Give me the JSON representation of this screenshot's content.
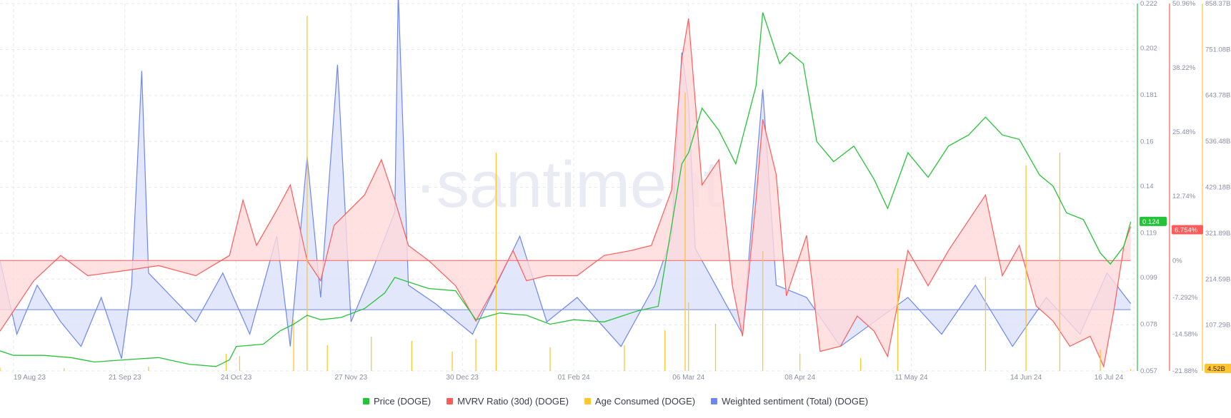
{
  "watermark": "·santiment",
  "colors": {
    "price": "#26c33a",
    "mvrv": "#ff5b5b",
    "age": "#ffc533",
    "sentiment": "#6e86f0",
    "mvrv_fill": "#ffd9d9",
    "sent_fill": "#dde3fb",
    "grid": "#e6e8ee",
    "tick": "#8a8fa3"
  },
  "legend": {
    "price": "Price (DOGE)",
    "mvrv": "MVRV Ratio (30d) (DOGE)",
    "age": "Age Consumed (DOGE)",
    "sentiment": "Weighted sentiment (Total) (DOGE)"
  },
  "chart_data": {
    "type": "line",
    "x_start": "2023-08-15",
    "x_end": "2024-07-17",
    "x_ticks": [
      "19 Aug 23",
      "21 Sep 23",
      "24 Oct 23",
      "27 Nov 23",
      "30 Dec 23",
      "01 Feb 24",
      "06 Mar 24",
      "08 Apr 24",
      "11 May 24",
      "14 Jun 24",
      "16 Jul 24"
    ],
    "axes": {
      "price": {
        "ticks": [
          "0.222",
          "0.202",
          "0.181",
          "0.16",
          "0.14",
          "0.119",
          "0.099",
          "0.078",
          "0.057"
        ],
        "range": [
          0.057,
          0.222
        ],
        "current": "0.124"
      },
      "mvrv": {
        "ticks": [
          "50.96%",
          "38.22%",
          "25.48%",
          "12.74%",
          "0%",
          "-7.292%",
          "-14.58%",
          "-21.88%"
        ],
        "range": [
          -21.88,
          50.96
        ],
        "current": "6.754%"
      },
      "age": {
        "ticks": [
          "858.37B",
          "751.08B",
          "643.78B",
          "536.48B",
          "429.18B",
          "321.89B",
          "214.59B",
          "107.29B"
        ],
        "range": [
          0,
          858.37
        ],
        "unit": "B",
        "current": "4.52B"
      },
      "sentiment": {
        "range": [
          -0.5,
          2.5
        ],
        "baseline": 0
      }
    },
    "series": [
      {
        "name": "Price (DOGE)",
        "axis": "price",
        "points": [
          [
            "2023-08-15",
            0.066
          ],
          [
            "2023-08-19",
            0.064
          ],
          [
            "2023-08-28",
            0.064
          ],
          [
            "2023-09-05",
            0.063
          ],
          [
            "2023-09-12",
            0.061
          ],
          [
            "2023-09-21",
            0.062
          ],
          [
            "2023-10-01",
            0.063
          ],
          [
            "2023-10-10",
            0.06
          ],
          [
            "2023-10-18",
            0.059
          ],
          [
            "2023-10-22",
            0.062
          ],
          [
            "2023-10-24",
            0.068
          ],
          [
            "2023-11-01",
            0.069
          ],
          [
            "2023-11-06",
            0.075
          ],
          [
            "2023-11-10",
            0.078
          ],
          [
            "2023-11-14",
            0.082
          ],
          [
            "2023-11-18",
            0.08
          ],
          [
            "2023-11-24",
            0.081
          ],
          [
            "2023-12-01",
            0.085
          ],
          [
            "2023-12-07",
            0.092
          ],
          [
            "2023-12-10",
            0.099
          ],
          [
            "2023-12-14",
            0.097
          ],
          [
            "2023-12-20",
            0.094
          ],
          [
            "2023-12-28",
            0.093
          ],
          [
            "2024-01-03",
            0.08
          ],
          [
            "2024-01-10",
            0.083
          ],
          [
            "2024-01-18",
            0.082
          ],
          [
            "2024-01-25",
            0.078
          ],
          [
            "2024-02-01",
            0.08
          ],
          [
            "2024-02-10",
            0.079
          ],
          [
            "2024-02-20",
            0.084
          ],
          [
            "2024-02-26",
            0.086
          ],
          [
            "2024-02-29",
            0.113
          ],
          [
            "2024-03-04",
            0.15
          ],
          [
            "2024-03-06",
            0.155
          ],
          [
            "2024-03-10",
            0.175
          ],
          [
            "2024-03-15",
            0.165
          ],
          [
            "2024-03-20",
            0.15
          ],
          [
            "2024-03-26",
            0.185
          ],
          [
            "2024-03-28",
            0.218
          ],
          [
            "2024-04-02",
            0.195
          ],
          [
            "2024-04-05",
            0.2
          ],
          [
            "2024-04-09",
            0.195
          ],
          [
            "2024-04-13",
            0.16
          ],
          [
            "2024-04-18",
            0.151
          ],
          [
            "2024-04-24",
            0.158
          ],
          [
            "2024-04-30",
            0.143
          ],
          [
            "2024-05-04",
            0.13
          ],
          [
            "2024-05-10",
            0.155
          ],
          [
            "2024-05-16",
            0.144
          ],
          [
            "2024-05-22",
            0.158
          ],
          [
            "2024-05-28",
            0.163
          ],
          [
            "2024-06-02",
            0.171
          ],
          [
            "2024-06-07",
            0.163
          ],
          [
            "2024-06-12",
            0.161
          ],
          [
            "2024-06-18",
            0.145
          ],
          [
            "2024-06-22",
            0.14
          ],
          [
            "2024-06-26",
            0.128
          ],
          [
            "2024-07-01",
            0.125
          ],
          [
            "2024-07-06",
            0.11
          ],
          [
            "2024-07-09",
            0.105
          ],
          [
            "2024-07-13",
            0.113
          ],
          [
            "2024-07-15",
            0.124
          ]
        ]
      },
      {
        "name": "MVRV Ratio (30d) (DOGE)",
        "axis": "mvrv",
        "points": [
          [
            "2023-08-15",
            -14
          ],
          [
            "2023-08-19",
            -10
          ],
          [
            "2023-08-25",
            -4
          ],
          [
            "2023-09-02",
            1
          ],
          [
            "2023-09-10",
            -3
          ],
          [
            "2023-09-21",
            -2
          ],
          [
            "2023-10-01",
            -1
          ],
          [
            "2023-10-12",
            -3
          ],
          [
            "2023-10-22",
            1
          ],
          [
            "2023-10-26",
            12
          ],
          [
            "2023-10-30",
            3
          ],
          [
            "2023-11-05",
            10
          ],
          [
            "2023-11-09",
            15
          ],
          [
            "2023-11-14",
            0
          ],
          [
            "2023-11-18",
            -4
          ],
          [
            "2023-11-22",
            7
          ],
          [
            "2023-12-01",
            13
          ],
          [
            "2023-12-06",
            20
          ],
          [
            "2023-12-10",
            12
          ],
          [
            "2023-12-14",
            3
          ],
          [
            "2023-12-20",
            0
          ],
          [
            "2023-12-28",
            -5
          ],
          [
            "2024-01-03",
            -12
          ],
          [
            "2024-01-08",
            -6
          ],
          [
            "2024-01-14",
            2
          ],
          [
            "2024-01-18",
            -4
          ],
          [
            "2024-01-24",
            -3
          ],
          [
            "2024-02-02",
            -3
          ],
          [
            "2024-02-10",
            1
          ],
          [
            "2024-02-18",
            2
          ],
          [
            "2024-02-24",
            3
          ],
          [
            "2024-03-01",
            14
          ],
          [
            "2024-03-04",
            40
          ],
          [
            "2024-03-06",
            48
          ],
          [
            "2024-03-10",
            15
          ],
          [
            "2024-03-15",
            20
          ],
          [
            "2024-03-19",
            -5
          ],
          [
            "2024-03-22",
            -15
          ],
          [
            "2024-03-26",
            12
          ],
          [
            "2024-03-28",
            28
          ],
          [
            "2024-04-01",
            17
          ],
          [
            "2024-04-04",
            -7
          ],
          [
            "2024-04-10",
            5
          ],
          [
            "2024-04-14",
            -18
          ],
          [
            "2024-04-20",
            -17
          ],
          [
            "2024-04-25",
            -11
          ],
          [
            "2024-04-30",
            -14
          ],
          [
            "2024-05-04",
            -19
          ],
          [
            "2024-05-10",
            2
          ],
          [
            "2024-05-16",
            -5
          ],
          [
            "2024-05-22",
            2
          ],
          [
            "2024-05-28",
            8
          ],
          [
            "2024-06-02",
            13
          ],
          [
            "2024-06-07",
            -3
          ],
          [
            "2024-06-12",
            3
          ],
          [
            "2024-06-17",
            -9
          ],
          [
            "2024-06-22",
            -12
          ],
          [
            "2024-06-27",
            -17
          ],
          [
            "2024-07-03",
            -15
          ],
          [
            "2024-07-07",
            -21
          ],
          [
            "2024-07-10",
            -10
          ],
          [
            "2024-07-13",
            3
          ],
          [
            "2024-07-15",
            6.754
          ]
        ]
      },
      {
        "name": "Age Consumed (DOGE)",
        "axis": "age",
        "points": [
          [
            "2023-08-15",
            8
          ],
          [
            "2023-09-03",
            6
          ],
          [
            "2023-09-28",
            10
          ],
          [
            "2023-10-21",
            40
          ],
          [
            "2023-10-25",
            35
          ],
          [
            "2023-11-10",
            120
          ],
          [
            "2023-11-14",
            830
          ],
          [
            "2023-11-20",
            60
          ],
          [
            "2023-12-03",
            80
          ],
          [
            "2023-12-15",
            70
          ],
          [
            "2023-12-27",
            45
          ],
          [
            "2024-01-03",
            75
          ],
          [
            "2024-01-09",
            510
          ],
          [
            "2024-01-25",
            55
          ],
          [
            "2024-02-16",
            60
          ],
          [
            "2024-02-28",
            95
          ],
          [
            "2024-03-05",
            650
          ],
          [
            "2024-03-06",
            160
          ],
          [
            "2024-03-14",
            110
          ],
          [
            "2024-03-28",
            280
          ],
          [
            "2024-04-08",
            40
          ],
          [
            "2024-04-26",
            30
          ],
          [
            "2024-05-07",
            240
          ],
          [
            "2024-06-02",
            220
          ],
          [
            "2024-06-14",
            480
          ],
          [
            "2024-06-24",
            510
          ],
          [
            "2024-07-06",
            50
          ],
          [
            "2024-07-15",
            4.52
          ]
        ]
      },
      {
        "name": "Weighted sentiment (Total) (DOGE)",
        "axis": "sentiment",
        "points": [
          [
            "2023-08-15",
            0.4
          ],
          [
            "2023-08-20",
            -0.2
          ],
          [
            "2023-08-26",
            0.2
          ],
          [
            "2023-09-02",
            -0.1
          ],
          [
            "2023-09-08",
            -0.3
          ],
          [
            "2023-09-14",
            0.1
          ],
          [
            "2023-09-20",
            -0.4
          ],
          [
            "2023-09-23",
            0.2
          ],
          [
            "2023-09-26",
            1.95
          ],
          [
            "2023-09-28",
            0.3
          ],
          [
            "2023-10-05",
            0.1
          ],
          [
            "2023-10-12",
            -0.1
          ],
          [
            "2023-10-20",
            0.3
          ],
          [
            "2023-10-28",
            -0.2
          ],
          [
            "2023-11-05",
            0.6
          ],
          [
            "2023-11-09",
            -0.3
          ],
          [
            "2023-11-14",
            1.25
          ],
          [
            "2023-11-18",
            0.1
          ],
          [
            "2023-11-23",
            2.0
          ],
          [
            "2023-11-27",
            -0.1
          ],
          [
            "2023-12-03",
            0.3
          ],
          [
            "2023-12-10",
            0.8
          ],
          [
            "2023-12-11",
            2.6
          ],
          [
            "2023-12-14",
            0.2
          ],
          [
            "2023-12-22",
            0.05
          ],
          [
            "2024-01-02",
            -0.2
          ],
          [
            "2024-01-09",
            0.2
          ],
          [
            "2024-01-16",
            0.6
          ],
          [
            "2024-01-24",
            -0.1
          ],
          [
            "2024-02-02",
            0.1
          ],
          [
            "2024-02-15",
            -0.3
          ],
          [
            "2024-02-25",
            0.2
          ],
          [
            "2024-03-01",
            0.6
          ],
          [
            "2024-03-04",
            2.1
          ],
          [
            "2024-03-06",
            1.7
          ],
          [
            "2024-03-08",
            0.5
          ],
          [
            "2024-03-14",
            0.2
          ],
          [
            "2024-03-22",
            -0.2
          ],
          [
            "2024-03-28",
            1.8
          ],
          [
            "2024-04-01",
            0.2
          ],
          [
            "2024-04-10",
            0.1
          ],
          [
            "2024-04-20",
            -0.3
          ],
          [
            "2024-04-30",
            -0.1
          ],
          [
            "2024-05-10",
            0.1
          ],
          [
            "2024-05-20",
            -0.2
          ],
          [
            "2024-05-30",
            0.2
          ],
          [
            "2024-06-10",
            -0.3
          ],
          [
            "2024-06-20",
            0.1
          ],
          [
            "2024-06-30",
            -0.2
          ],
          [
            "2024-07-08",
            0.3
          ],
          [
            "2024-07-15",
            0.05
          ]
        ]
      }
    ]
  }
}
